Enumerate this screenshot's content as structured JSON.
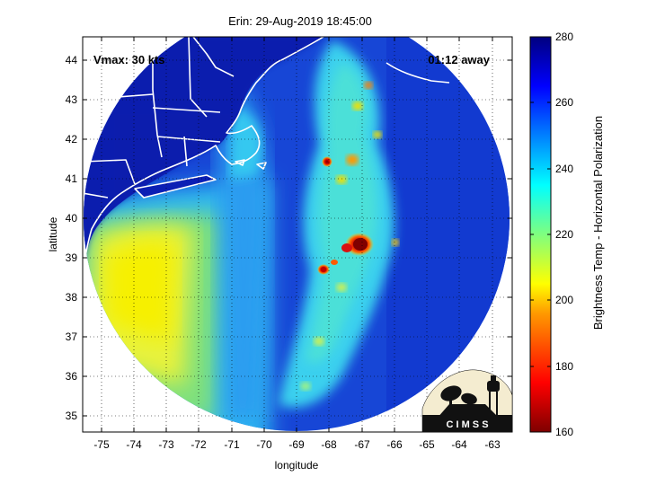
{
  "title": "Erin: 29-Aug-2019 18:45:00",
  "annotations": {
    "vmax": "Vmax: 30 kts",
    "time_away": "01:12 away"
  },
  "axes": {
    "xlabel": "longitude",
    "ylabel": "latitude",
    "xlim": [
      -75.6,
      -62.4
    ],
    "ylim": [
      34.6,
      44.6
    ],
    "xticks": [
      "-75",
      "-74",
      "-73",
      "-72",
      "-71",
      "-70",
      "-69",
      "-68",
      "-67",
      "-66",
      "-65",
      "-64",
      "-63"
    ],
    "yticks": [
      "35",
      "36",
      "37",
      "38",
      "39",
      "40",
      "41",
      "42",
      "43",
      "44"
    ],
    "grid": "dotted"
  },
  "colorbar": {
    "label": "Brightness Temp - Horizontal Polarization",
    "min": 160,
    "max": 280,
    "ticks": [
      "280",
      "260",
      "240",
      "220",
      "200",
      "180",
      "160"
    ],
    "colormap": "jet"
  },
  "logo": {
    "text": "C I M S S"
  },
  "colors": {
    "background": "#ffffff",
    "coast": "#ffffff",
    "cold_core": "#8b0000",
    "warm_field": "#0a2fc8"
  }
}
